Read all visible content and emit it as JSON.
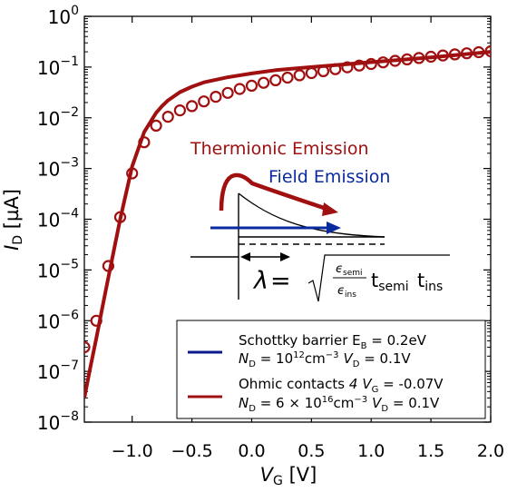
{
  "chart_data": {
    "type": "line",
    "title": "",
    "xlabel": {
      "main": "V",
      "sub": "G",
      "unit": " [V]"
    },
    "ylabel": {
      "main": "I",
      "sub": "D",
      "unit": " [µA]"
    },
    "xlim": [
      -1.4,
      2.0
    ],
    "ylim_log10": [
      -8,
      0
    ],
    "yscale": "log",
    "grid": false,
    "x_ticks": [
      {
        "value": -1.0,
        "label": "−1.0"
      },
      {
        "value": -0.5,
        "label": "−0.5"
      },
      {
        "value": 0.0,
        "label": "0.0"
      },
      {
        "value": 0.5,
        "label": "0.5"
      },
      {
        "value": 1.0,
        "label": "1.0"
      },
      {
        "value": 1.5,
        "label": "1.5"
      },
      {
        "value": 2.0,
        "label": "2.0"
      }
    ],
    "y_ticks": [
      {
        "exp": 0,
        "base": "10",
        "sup": "0"
      },
      {
        "exp": -1,
        "base": "10",
        "sup": "−1"
      },
      {
        "exp": -2,
        "base": "10",
        "sup": "−2"
      },
      {
        "exp": -3,
        "base": "10",
        "sup": "−3"
      },
      {
        "exp": -4,
        "base": "10",
        "sup": "−4"
      },
      {
        "exp": -5,
        "base": "10",
        "sup": "−5"
      },
      {
        "exp": -6,
        "base": "10",
        "sup": "−6"
      },
      {
        "exp": -7,
        "base": "10",
        "sup": "−7"
      },
      {
        "exp": -8,
        "base": "10",
        "sup": "−8"
      }
    ],
    "legend_placement": "bottom-right",
    "series": [
      {
        "name": "Schottky barrier E_B = 0.2eV, N_D = 10^12 cm^-3, V_D = 0.1V",
        "kind": "line",
        "color": "#0a1a8c",
        "x": [
          -1.4,
          -1.35,
          -1.3,
          -1.25,
          -1.2,
          -1.1,
          -1.0,
          -0.9,
          -0.8,
          -0.75,
          -0.7,
          -0.6,
          -0.5,
          -0.4,
          -0.2,
          0.0,
          0.2,
          0.5,
          1.0,
          1.5,
          2.0
        ],
        "y": [
          3e-08,
          1.2e-07,
          4.5e-07,
          1.8e-06,
          7e-06,
          0.0001,
          0.0011,
          0.0052,
          0.0125,
          0.017,
          0.022,
          0.032,
          0.041,
          0.05,
          0.063,
          0.075,
          0.087,
          0.1,
          0.125,
          0.155,
          0.2
        ]
      },
      {
        "name": "Ohmic contacts 4 V_G = -0.07V, N_D = 6×10^16 cm^-3, V_D = 0.1V",
        "kind": "line",
        "color": "#a01010",
        "x": [
          -1.4,
          -1.35,
          -1.3,
          -1.25,
          -1.2,
          -1.1,
          -1.0,
          -0.9,
          -0.8,
          -0.75,
          -0.7,
          -0.6,
          -0.5,
          -0.4,
          -0.2,
          0.0,
          0.2,
          0.5,
          1.0,
          1.5,
          2.0
        ],
        "y": [
          3e-08,
          1.2e-07,
          4.5e-07,
          1.8e-06,
          7e-06,
          0.0001,
          0.0011,
          0.0052,
          0.0125,
          0.017,
          0.022,
          0.032,
          0.041,
          0.05,
          0.063,
          0.075,
          0.087,
          0.1,
          0.125,
          0.155,
          0.2
        ]
      },
      {
        "name": "",
        "kind": "markers",
        "color": "#a01010",
        "x": [
          -1.4,
          -1.3,
          -1.2,
          -1.1,
          -1.0,
          -0.9,
          -0.8,
          -0.7,
          -0.6,
          -0.5,
          -0.4,
          -0.3,
          -0.2,
          -0.1,
          0.0,
          0.1,
          0.2,
          0.3,
          0.4,
          0.5,
          0.6,
          0.7,
          0.8,
          0.9,
          1.0,
          1.1,
          1.2,
          1.3,
          1.4,
          1.5,
          1.6,
          1.7,
          1.8,
          1.9,
          2.0
        ],
        "y": [
          3e-07,
          1e-06,
          1.2e-05,
          0.00011,
          0.0008,
          0.0033,
          0.007,
          0.0105,
          0.014,
          0.017,
          0.021,
          0.026,
          0.031,
          0.037,
          0.043,
          0.049,
          0.055,
          0.062,
          0.069,
          0.076,
          0.083,
          0.091,
          0.099,
          0.107,
          0.115,
          0.124,
          0.133,
          0.142,
          0.151,
          0.16,
          0.169,
          0.178,
          0.187,
          0.196,
          0.205
        ]
      }
    ],
    "inset": {
      "thermionic_label": "Thermionic Emission",
      "field_label": "Field Emission",
      "lambda_symbol": "λ",
      "equals": " =",
      "eps_semi": {
        "main": "ϵ",
        "sub": "semi"
      },
      "eps_ins": {
        "main": "ϵ",
        "sub": "ins"
      },
      "t_semi": {
        "main": "t",
        "sub": "semi"
      },
      "t_ins": {
        "main": "t",
        "sub": "ins"
      },
      "thermionic_color": "#a01010",
      "field_color": "#0a2aa0"
    },
    "legend": [
      {
        "color": "#0a1a8c",
        "line1": {
          "text": "Schottky barrier E",
          "sub": "B",
          "tail": " = 0.2eV"
        },
        "line2": {
          "n": "N",
          "n_sub": "D",
          "eq": " = 10",
          "sup": "12",
          "unit": "cm",
          "unit_sup": "−3",
          "v": "V",
          "v_sub": "D",
          "tail": " = 0.1V"
        }
      },
      {
        "color": "#a01010",
        "line1": {
          "text": "Ohmic contacts ",
          "italic": "4",
          "v": "V",
          "v_sub": "G",
          "tail": " = -0.07V"
        },
        "line2": {
          "n": "N",
          "n_sub": "D",
          "eq": " = 6 × 10",
          "sup": "16",
          "unit": "cm",
          "unit_sup": "−3",
          "v": "V",
          "v_sub": "D",
          "tail": " = 0.1V"
        }
      }
    ]
  }
}
